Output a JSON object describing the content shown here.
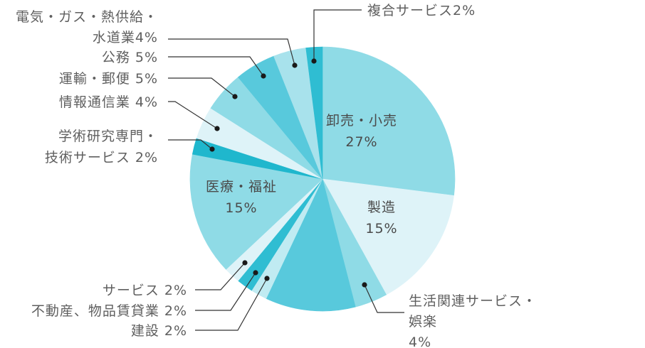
{
  "chart_data": {
    "type": "pie",
    "title": "",
    "slices": [
      {
        "category": "卸売・小売",
        "value": 27,
        "color": "#8fdbe6",
        "label_lines": [
          "卸売・小売",
          "27%"
        ],
        "label_style": "inside"
      },
      {
        "category": "製造",
        "value": 15,
        "color": "#def3f8",
        "label_lines": [
          "製造",
          "15%"
        ],
        "label_style": "inside"
      },
      {
        "category": "生活関連サービス・娯楽",
        "value": 4,
        "color": "#8fdbe6",
        "label_lines": [
          "生活関連サービス・",
          "娯楽",
          "4%"
        ],
        "label_style": "outside"
      },
      {
        "category": "unlabeled",
        "value": 11,
        "color": "#58c9dc",
        "label_lines": [],
        "label_style": "none"
      },
      {
        "category": "建設",
        "value": 2,
        "color": "#c0ebf2",
        "label_lines": [
          "建設 2%"
        ],
        "label_style": "outside"
      },
      {
        "category": "不動産、物品賃貸業",
        "value": 2,
        "color": "#2fbdd2",
        "label_lines": [
          "不動産、物品賃貸業 2%"
        ],
        "label_style": "outside"
      },
      {
        "category": "サービス",
        "value": 2,
        "color": "#def3f8",
        "label_lines": [
          "サービス 2%"
        ],
        "label_style": "outside"
      },
      {
        "category": "医療・福祉",
        "value": 15,
        "color": "#8fdbe6",
        "label_lines": [
          "医療・福祉",
          "15%"
        ],
        "label_style": "inside"
      },
      {
        "category": "学術研究専門・技術サービス",
        "value": 2,
        "color": "#1fb7cd",
        "label_lines": [
          "学術研究専門・",
          "技術サービス 2%"
        ],
        "label_style": "outside"
      },
      {
        "category": "情報通信業",
        "value": 4,
        "color": "#def3f8",
        "label_lines": [
          "情報通信業 4%"
        ],
        "label_style": "outside"
      },
      {
        "category": "運輸・郵便",
        "value": 5,
        "color": "#8fdbe6",
        "label_lines": [
          "運輸・郵便 5%"
        ],
        "label_style": "outside"
      },
      {
        "category": "公務",
        "value": 5,
        "color": "#58c9dc",
        "label_lines": [
          "公務 5%"
        ],
        "label_style": "outside"
      },
      {
        "category": "電気・ガス・熱供給・水道業",
        "value": 4,
        "color": "#a8e2ec",
        "label_lines": [
          "電気・ガス・熱供給・",
          "水道業4%"
        ],
        "label_style": "outside"
      },
      {
        "category": "複合サービス",
        "value": 2,
        "color": "#2fbdd2",
        "label_lines": [
          "複合サービス2%"
        ],
        "label_style": "outside"
      }
    ],
    "start_angle": "12 o'clock",
    "direction": "clockwise",
    "legend": "none",
    "labels": "direct labels with leader lines"
  }
}
